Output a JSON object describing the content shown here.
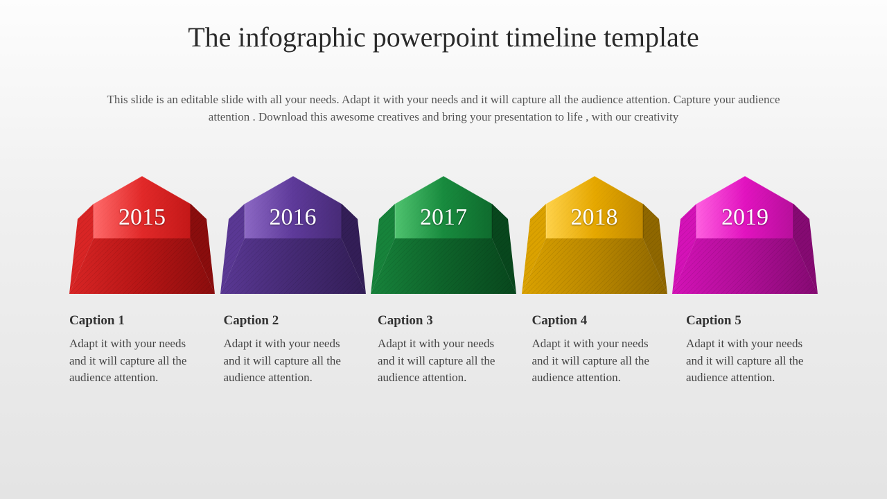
{
  "title": "The infographic powerpoint timeline template",
  "subtitle": "This slide is an editable slide with all your needs. Adapt it with your needs and it will capture all the audience attention. Capture your audience attention . Download this awesome creatives and bring your presentation to life , with our creativity",
  "blocks": [
    {
      "year": "2015",
      "topLight": "#ff6a6a",
      "topMain": "#e22929",
      "topDark": "#c41818",
      "lowLight": "#d92525",
      "lowMain": "#b61515",
      "lowDark": "#8a0d0d"
    },
    {
      "year": "2016",
      "topLight": "#8c68c4",
      "topMain": "#5e3a9a",
      "topDark": "#482b78",
      "lowLight": "#5a3894",
      "lowMain": "#452a74",
      "lowDark": "#331e57"
    },
    {
      "year": "2017",
      "topLight": "#4fc36f",
      "topMain": "#188b3e",
      "topDark": "#0f6c2e",
      "lowLight": "#17833b",
      "lowMain": "#0e632a",
      "lowDark": "#08471d"
    },
    {
      "year": "2018",
      "topLight": "#ffd24a",
      "topMain": "#e6a800",
      "topDark": "#c28a00",
      "lowLight": "#dba200",
      "lowMain": "#b98700",
      "lowDark": "#8f6700"
    },
    {
      "year": "2019",
      "topLight": "#ff5fe0",
      "topMain": "#e213c0",
      "topDark": "#b80f9c",
      "lowLight": "#d412b7",
      "lowMain": "#af0e97",
      "lowDark": "#850a72"
    }
  ],
  "captions": [
    {
      "title": "Caption 1",
      "text": "Adapt it with your needs and it will capture all the audience attention."
    },
    {
      "title": "Caption 2",
      "text": "Adapt it with your needs and it will capture all the audience attention."
    },
    {
      "title": "Caption 3",
      "text": "Adapt it with your needs and it will capture all the audience attention."
    },
    {
      "title": "Caption 4",
      "text": "Adapt it with your needs and it will capture all the audience attention."
    },
    {
      "title": "Caption 5",
      "text": "Adapt it with your needs and it will capture all the audience attention."
    }
  ],
  "style": {
    "year_fontsize": 34,
    "year_color": "#ffffff",
    "title_fontsize": 40,
    "title_color": "#2a2a2a",
    "subtitle_fontsize": 17,
    "subtitle_color": "#555555",
    "caption_title_fontsize": 19,
    "caption_text_fontsize": 17,
    "block_width": 210,
    "block_height": 170,
    "timeline_gap": 7
  }
}
